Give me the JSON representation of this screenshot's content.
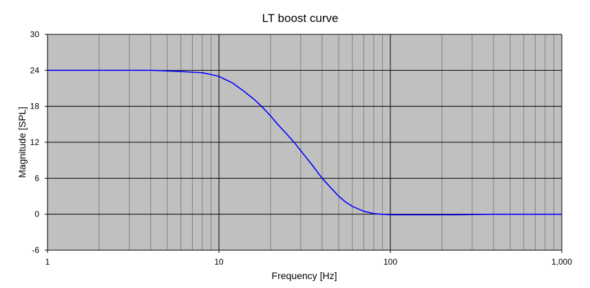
{
  "chart_data": {
    "type": "line",
    "title": "LT boost curve",
    "xlabel": "Frequency [Hz]",
    "ylabel": "Magnitude [SPL]",
    "x_scale": "log",
    "xlim": [
      1,
      1000
    ],
    "ylim": [
      -6,
      30
    ],
    "x_ticks": [
      1,
      10,
      100,
      1000
    ],
    "x_tick_labels": [
      "1",
      "10",
      "100",
      "1,000"
    ],
    "y_ticks": [
      -6,
      0,
      6,
      12,
      18,
      24,
      30
    ],
    "y_tick_labels": [
      "-6",
      "0",
      "6",
      "12",
      "18",
      "24",
      "30"
    ],
    "grid": true,
    "legend": "none",
    "colors": {
      "plot_background": "#c0c0c0",
      "major_grid": "#000000",
      "minor_grid": "#808080",
      "line": "#0000ff"
    },
    "series": [
      {
        "color": "#0000ff",
        "x": [
          1,
          2,
          4,
          5,
          6,
          7,
          8,
          9,
          10,
          12,
          14,
          16,
          18,
          20,
          22,
          25,
          28,
          30,
          35,
          40,
          45,
          50,
          55,
          60,
          70,
          80,
          90,
          100,
          150,
          250,
          400,
          1000
        ],
        "y": [
          24,
          24,
          24,
          23.9,
          23.8,
          23.7,
          23.6,
          23.3,
          23,
          21.9,
          20.5,
          19.2,
          17.8,
          16.4,
          15,
          13.3,
          11.7,
          10.6,
          8.2,
          6,
          4.4,
          3,
          2,
          1.3,
          0.5,
          0.1,
          0,
          -0.1,
          -0.1,
          -0.1,
          0,
          0
        ]
      }
    ]
  }
}
